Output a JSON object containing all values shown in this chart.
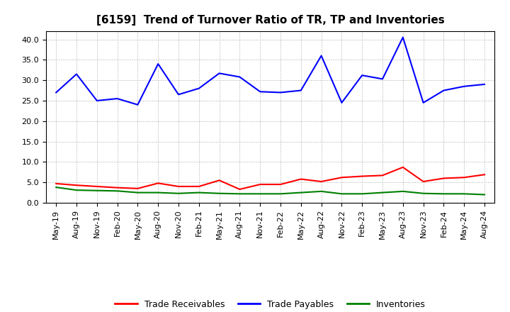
{
  "title": "[6159]  Trend of Turnover Ratio of TR, TP and Inventories",
  "x_labels": [
    "May-19",
    "Aug-19",
    "Nov-19",
    "Feb-20",
    "May-20",
    "Aug-20",
    "Nov-20",
    "Feb-21",
    "May-21",
    "Aug-21",
    "Nov-21",
    "Feb-22",
    "May-22",
    "Aug-22",
    "Nov-22",
    "Feb-23",
    "May-23",
    "Aug-23",
    "Nov-23",
    "Feb-24",
    "May-24",
    "Aug-24"
  ],
  "trade_receivables": [
    4.7,
    4.3,
    4.0,
    3.7,
    3.5,
    4.8,
    4.0,
    4.0,
    5.5,
    3.3,
    4.5,
    4.5,
    5.8,
    5.2,
    6.2,
    6.5,
    6.7,
    8.7,
    5.2,
    6.0,
    6.2,
    6.9
  ],
  "trade_payables": [
    27.0,
    31.5,
    25.0,
    25.5,
    24.0,
    34.0,
    26.5,
    28.0,
    31.7,
    30.8,
    27.2,
    27.0,
    27.5,
    36.0,
    24.5,
    31.2,
    30.3,
    40.5,
    24.5,
    27.5,
    28.5,
    29.0
  ],
  "inventories": [
    3.8,
    3.1,
    3.0,
    2.9,
    2.5,
    2.5,
    2.3,
    2.5,
    2.3,
    2.2,
    2.2,
    2.2,
    2.5,
    2.8,
    2.2,
    2.2,
    2.5,
    2.8,
    2.3,
    2.2,
    2.2,
    2.0
  ],
  "tr_color": "#ff0000",
  "tp_color": "#0000ff",
  "inv_color": "#008000",
  "ylim": [
    0.0,
    42.0
  ],
  "yticks": [
    0.0,
    5.0,
    10.0,
    15.0,
    20.0,
    25.0,
    30.0,
    35.0,
    40.0
  ],
  "background_color": "#ffffff",
  "grid_color": "#aaaaaa",
  "title_fontsize": 11,
  "tick_fontsize": 8,
  "legend_fontsize": 9,
  "legend_labels": [
    "Trade Receivables",
    "Trade Payables",
    "Inventories"
  ]
}
